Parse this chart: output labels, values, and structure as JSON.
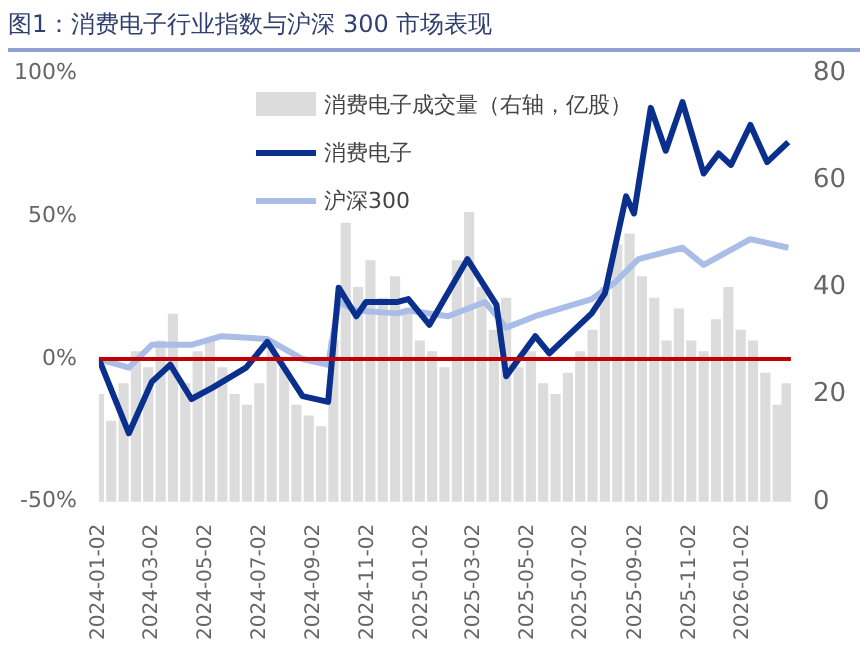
{
  "chart_data": {
    "type": "line",
    "title": "图1：消费电子行业指数与沪深 300 市场表现",
    "xlim": [
      "2024-01-02",
      "2026-02-25"
    ],
    "xticks": [
      "2024-01-02",
      "2024-03-02",
      "2024-05-02",
      "2024-07-02",
      "2024-09-02",
      "2024-11-02",
      "2025-01-02",
      "2025-03-02",
      "2025-05-02",
      "2025-07-02",
      "2025-09-02",
      "2025-11-02",
      "2026-01-02"
    ],
    "ylim": [
      -50,
      100
    ],
    "yticks": [
      {
        "value": -50,
        "label": "-50%"
      },
      {
        "value": 0,
        "label": "0%"
      },
      {
        "value": 50,
        "label": "50%"
      },
      {
        "value": 100,
        "label": "100%"
      }
    ],
    "y2lim": [
      0,
      80
    ],
    "y2ticks": [
      0,
      20,
      40,
      60,
      80
    ],
    "grid": false,
    "legend": "top",
    "marker": "none",
    "ref_lines": [
      {
        "axis": "y",
        "value": 0,
        "color": "#c00000"
      }
    ],
    "series": [
      {
        "name": "消费电子成交量（右轴，亿股）",
        "type": "bar",
        "axis": "y2",
        "color": "#dcdcdc",
        "x": [
          "2024-01-02",
          "2024-01-16",
          "2024-01-30",
          "2024-02-13",
          "2024-02-27",
          "2024-03-12",
          "2024-03-26",
          "2024-04-09",
          "2024-04-23",
          "2024-05-07",
          "2024-05-21",
          "2024-06-04",
          "2024-06-18",
          "2024-07-02",
          "2024-07-16",
          "2024-07-30",
          "2024-08-13",
          "2024-08-27",
          "2024-09-10",
          "2024-09-24",
          "2024-10-08",
          "2024-10-22",
          "2024-11-05",
          "2024-11-19",
          "2024-12-03",
          "2024-12-17",
          "2024-12-31",
          "2025-01-14",
          "2025-01-28",
          "2025-02-11",
          "2025-02-25",
          "2025-03-11",
          "2025-03-25",
          "2025-04-08",
          "2025-04-22",
          "2025-05-06",
          "2025-05-20",
          "2025-06-03",
          "2025-06-17",
          "2025-07-01",
          "2025-07-15",
          "2025-07-29",
          "2025-08-12",
          "2025-08-26",
          "2025-09-09",
          "2025-09-23",
          "2025-10-07",
          "2025-10-21",
          "2025-11-04",
          "2025-11-18",
          "2025-12-02",
          "2025-12-16",
          "2025-12-30",
          "2026-01-13",
          "2026-01-27",
          "2026-02-10",
          "2026-02-20"
        ],
        "values": [
          20,
          15,
          22,
          28,
          25,
          30,
          35,
          22,
          28,
          30,
          25,
          20,
          18,
          22,
          30,
          25,
          18,
          16,
          14,
          30,
          52,
          40,
          45,
          38,
          42,
          35,
          30,
          28,
          25,
          45,
          54,
          40,
          32,
          38,
          25,
          28,
          22,
          20,
          24,
          28,
          32,
          40,
          48,
          50,
          42,
          38,
          30,
          36,
          30,
          28,
          34,
          40,
          32,
          30,
          24,
          18,
          22
        ]
      },
      {
        "name": "消费电子",
        "color": "#0a2f8c",
        "x": [
          "2024-01-02",
          "2024-02-05",
          "2024-03-02",
          "2024-03-23",
          "2024-04-16",
          "2024-05-10",
          "2024-06-17",
          "2024-07-11",
          "2024-08-20",
          "2024-09-18",
          "2024-09-30",
          "2024-10-20",
          "2024-10-31",
          "2024-12-06",
          "2024-12-18",
          "2025-01-11",
          "2025-02-23",
          "2025-03-28",
          "2025-04-08",
          "2025-05-11",
          "2025-05-27",
          "2025-07-14",
          "2025-07-29",
          "2025-08-22",
          "2025-08-31",
          "2025-09-19",
          "2025-10-06",
          "2025-10-25",
          "2025-11-18",
          "2025-12-05",
          "2025-12-19",
          "2026-01-10",
          "2026-01-29",
          "2026-02-22"
        ],
        "values": [
          0,
          -26,
          -8,
          -2,
          -14,
          -10,
          -3,
          6,
          -13,
          -15,
          25,
          15,
          20,
          20,
          21,
          12,
          35,
          19,
          -6,
          8,
          2,
          16,
          23,
          57,
          51,
          88,
          73,
          90,
          65,
          72,
          68,
          82,
          69,
          76
        ]
      },
      {
        "name": "沪深300",
        "color": "#a9bde6",
        "x": [
          "2024-01-02",
          "2024-02-05",
          "2024-03-02",
          "2024-04-16",
          "2024-05-20",
          "2024-07-11",
          "2024-08-20",
          "2024-09-18",
          "2024-09-30",
          "2024-10-20",
          "2024-12-06",
          "2024-12-18",
          "2025-02-01",
          "2025-03-15",
          "2025-04-08",
          "2025-05-11",
          "2025-07-14",
          "2025-08-10",
          "2025-09-05",
          "2025-10-25",
          "2025-11-18",
          "2026-01-10",
          "2026-02-22"
        ],
        "values": [
          0,
          -3,
          5,
          5,
          8,
          7,
          0,
          -2,
          20,
          17,
          16,
          17,
          15,
          20,
          11,
          15,
          21,
          27,
          35,
          39,
          33,
          42,
          39
        ]
      }
    ]
  }
}
